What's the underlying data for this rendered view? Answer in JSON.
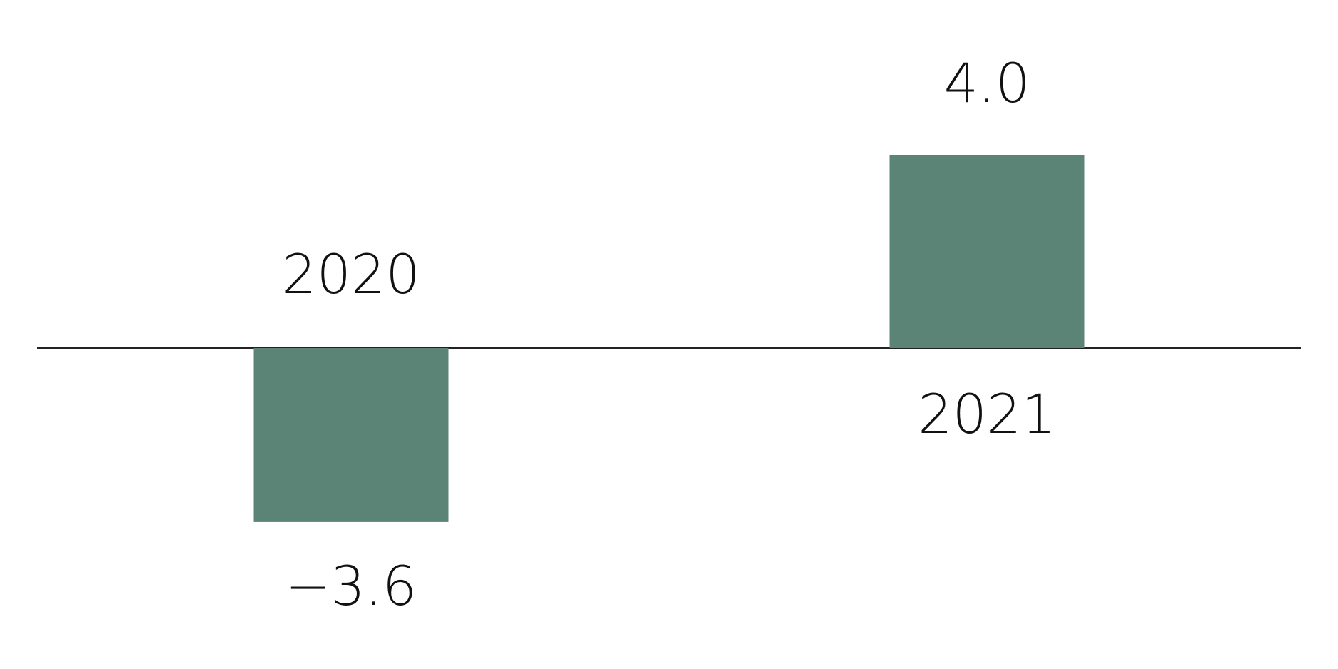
{
  "chart_data": {
    "type": "bar",
    "categories": [
      "2020",
      "2021"
    ],
    "values": [
      -3.6,
      4.0
    ],
    "value_labels": [
      "−3.6",
      "4.0"
    ],
    "color": "#5c8476"
  }
}
